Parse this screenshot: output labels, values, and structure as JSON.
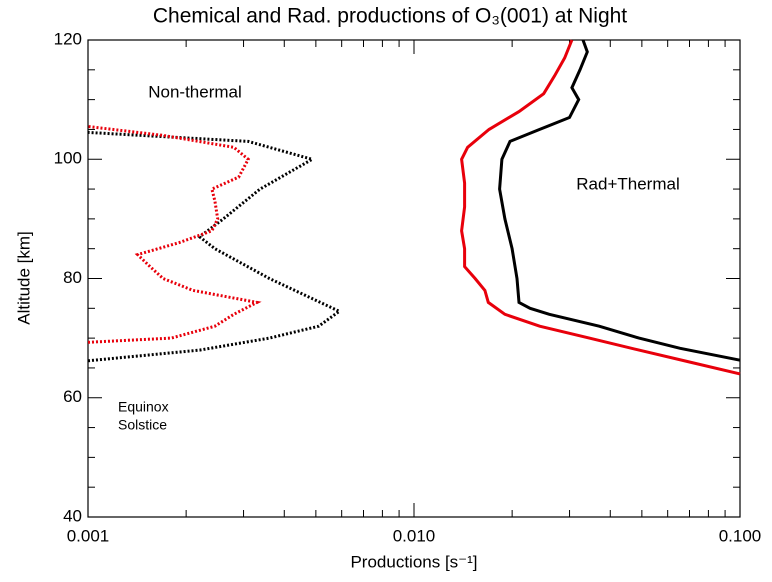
{
  "chart_data": {
    "type": "line",
    "title": "Chemical and Rad. productions of O₃(001) at Night",
    "xlabel": "Productions [s⁻¹]",
    "ylabel": "Altitude [km]",
    "annotations": [
      "Non-thermal",
      "Rad+Thermal"
    ],
    "xlog": true,
    "xlim": [
      0.001,
      0.1
    ],
    "ylim": [
      40,
      120
    ],
    "xticks": [
      0.001,
      {
        "value": 0.01,
        "label": "0.010"
      },
      {
        "value": 0.1,
        "label": "0.100"
      }
    ],
    "yticks": [
      40,
      60,
      80,
      100,
      120
    ],
    "xminorticks": [
      0.002,
      0.003,
      0.004,
      0.005,
      0.006,
      0.007,
      0.008,
      0.009,
      0.02,
      0.03,
      0.04,
      0.05,
      0.06,
      0.07,
      0.08,
      0.09
    ],
    "yminorticks": [
      45,
      50,
      55,
      65,
      70,
      75,
      85,
      90,
      95,
      105,
      110,
      115
    ],
    "series": [
      {
        "name": "Equinox",
        "color": "#000000",
        "style": "dotted",
        "x": [
          0.001,
          0.0022,
          0.0036,
          0.0051,
          0.0059,
          0.0036,
          0.00245,
          0.0022,
          0.0026,
          0.00337,
          0.00487,
          0.0031,
          0.001
        ],
        "y": [
          66.2,
          68,
          70,
          72,
          74.5,
          80,
          85,
          87,
          90,
          95,
          100,
          103,
          104.5
        ]
      },
      {
        "name": "Solstice",
        "color": "#e8000b",
        "style": "dotted",
        "x": [
          0.001,
          0.0018,
          0.00245,
          0.0028,
          0.0033,
          0.0021,
          0.0017,
          0.00155,
          0.00142,
          0.0019,
          0.0024,
          0.0025,
          0.00245,
          0.0024,
          0.0029,
          0.0031,
          0.0028,
          0.0017,
          0.001
        ],
        "y": [
          69.3,
          70,
          72,
          74,
          76,
          78,
          80,
          82,
          84,
          86,
          88,
          90,
          93,
          95,
          97,
          100,
          102,
          104,
          105.5
        ]
      },
      {
        "name": "Equinox",
        "color": "#000000",
        "style": "solid",
        "x": [
          0.1,
          0.0655,
          0.049,
          0.037,
          0.026,
          0.0227,
          0.021,
          0.0207,
          0.02,
          0.019,
          0.0183,
          0.0186,
          0.0197,
          0.0243,
          0.03,
          0.032,
          0.0305,
          0.0323,
          0.034,
          0.033
        ],
        "y": [
          66.3,
          68.3,
          70,
          72,
          74,
          75,
          76,
          80,
          85,
          90,
          95,
          100,
          103,
          105,
          107,
          110,
          112,
          115,
          118,
          120
        ]
      },
      {
        "name": "Solstice",
        "color": "#e8000b",
        "style": "solid",
        "x": [
          0.1,
          0.07,
          0.049,
          0.0345,
          0.0243,
          0.019,
          0.0169,
          0.0165,
          0.0154,
          0.0143,
          0.0143,
          0.014,
          0.0143,
          0.0143,
          0.014,
          0.0146,
          0.017,
          0.021,
          0.025,
          0.027,
          0.029,
          0.0305
        ],
        "y": [
          64,
          66,
          68,
          70,
          72,
          74,
          76,
          78,
          80,
          82,
          85,
          88,
          92,
          96,
          100,
          102,
          105,
          108,
          111,
          114,
          117,
          120
        ]
      }
    ]
  }
}
